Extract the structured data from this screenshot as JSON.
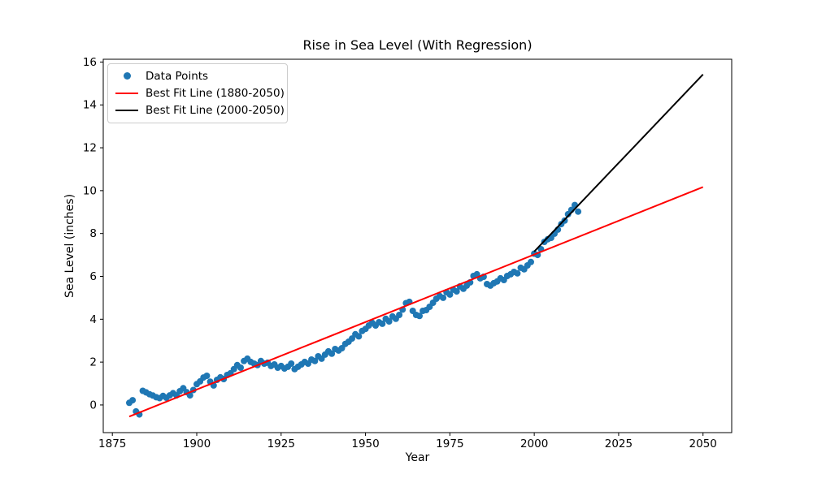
{
  "figure": {
    "title": "Rise in Sea Level (With Regression)",
    "xlabel": "Year",
    "ylabel": "Sea Level (inches)"
  },
  "legend": {
    "position": "upper left",
    "items": [
      {
        "label": "Data Points",
        "marker": "dot",
        "color": "#1f77b4"
      },
      {
        "label": "Best Fit Line (1880-2050)",
        "marker": "line",
        "color": "#ff0000"
      },
      {
        "label": "Best Fit Line (2000-2050)",
        "marker": "line",
        "color": "#000000"
      }
    ]
  },
  "chart_data": {
    "type": "scatter",
    "title": "Rise in Sea Level (With Regression)",
    "xlabel": "Year",
    "ylabel": "Sea Level (inches)",
    "xlim": [
      1872.3,
      2058.5
    ],
    "ylim": [
      -1.29,
      16.13
    ],
    "x_ticks": [
      1875,
      1900,
      1925,
      1950,
      1975,
      2000,
      2025,
      2050
    ],
    "y_ticks": [
      0,
      2,
      4,
      6,
      8,
      10,
      12,
      14,
      16
    ],
    "grid": false,
    "legend_position": "upper left",
    "series": [
      {
        "name": "Data Points",
        "type": "scatter",
        "color": "#1f77b4",
        "marker_radius": 4,
        "x": [
          1880,
          1881,
          1882,
          1883,
          1884,
          1885,
          1886,
          1887,
          1888,
          1889,
          1890,
          1891,
          1892,
          1893,
          1894,
          1895,
          1896,
          1897,
          1898,
          1899,
          1900,
          1901,
          1902,
          1903,
          1904,
          1905,
          1906,
          1907,
          1908,
          1909,
          1910,
          1911,
          1912,
          1913,
          1914,
          1915,
          1916,
          1917,
          1918,
          1919,
          1920,
          1921,
          1922,
          1923,
          1924,
          1925,
          1926,
          1927,
          1928,
          1929,
          1930,
          1931,
          1932,
          1933,
          1934,
          1935,
          1936,
          1937,
          1938,
          1939,
          1940,
          1941,
          1942,
          1943,
          1944,
          1945,
          1946,
          1947,
          1948,
          1949,
          1950,
          1951,
          1952,
          1953,
          1954,
          1955,
          1956,
          1957,
          1958,
          1959,
          1960,
          1961,
          1962,
          1963,
          1964,
          1965,
          1966,
          1967,
          1968,
          1969,
          1970,
          1971,
          1972,
          1973,
          1974,
          1975,
          1976,
          1977,
          1978,
          1979,
          1980,
          1981,
          1982,
          1983,
          1984,
          1985,
          1986,
          1987,
          1988,
          1989,
          1990,
          1991,
          1992,
          1993,
          1994,
          1995,
          1996,
          1997,
          1998,
          1999,
          2000,
          2001,
          2002,
          2003,
          2004,
          2005,
          2006,
          2007,
          2008,
          2009,
          2010,
          2011,
          2012,
          2013
        ],
        "y": [
          0.1,
          0.22,
          -0.3,
          -0.44,
          0.66,
          0.59,
          0.5,
          0.44,
          0.36,
          0.32,
          0.42,
          0.34,
          0.45,
          0.55,
          0.45,
          0.64,
          0.78,
          0.6,
          0.45,
          0.7,
          0.97,
          1.1,
          1.28,
          1.36,
          1.09,
          0.91,
          1.17,
          1.29,
          1.21,
          1.4,
          1.48,
          1.67,
          1.86,
          1.74,
          2.05,
          2.16,
          2.01,
          1.93,
          1.86,
          2.05,
          1.93,
          1.97,
          1.82,
          1.89,
          1.74,
          1.82,
          1.7,
          1.78,
          1.93,
          1.67,
          1.78,
          1.89,
          2.01,
          1.93,
          2.12,
          2.05,
          2.27,
          2.16,
          2.35,
          2.5,
          2.39,
          2.61,
          2.54,
          2.65,
          2.85,
          2.95,
          3.1,
          3.3,
          3.2,
          3.45,
          3.55,
          3.71,
          3.83,
          3.71,
          3.86,
          3.79,
          4.02,
          3.9,
          4.13,
          4.02,
          4.2,
          4.45,
          4.75,
          4.81,
          4.39,
          4.2,
          4.15,
          4.39,
          4.43,
          4.58,
          4.77,
          4.96,
          5.08,
          5.0,
          5.26,
          5.15,
          5.38,
          5.3,
          5.53,
          5.42,
          5.57,
          5.72,
          6.02,
          6.1,
          5.91,
          5.98,
          5.64,
          5.57,
          5.68,
          5.76,
          5.91,
          5.83,
          6.02,
          6.1,
          6.21,
          6.14,
          6.4,
          6.33,
          6.51,
          6.67,
          7.06,
          7.0,
          7.27,
          7.61,
          7.73,
          7.8,
          7.99,
          8.18,
          8.44,
          8.6,
          8.9,
          9.1,
          9.33,
          9.02
        ]
      },
      {
        "name": "Best Fit Line (1880-2050)",
        "type": "line",
        "color": "#ff0000",
        "line_width": 2,
        "x": [
          1880,
          2050
        ],
        "y": [
          -0.54,
          10.17
        ]
      },
      {
        "name": "Best Fit Line (2000-2050)",
        "type": "line",
        "color": "#000000",
        "line_width": 2,
        "x": [
          2000,
          2050
        ],
        "y": [
          7.16,
          15.42
        ]
      }
    ]
  }
}
